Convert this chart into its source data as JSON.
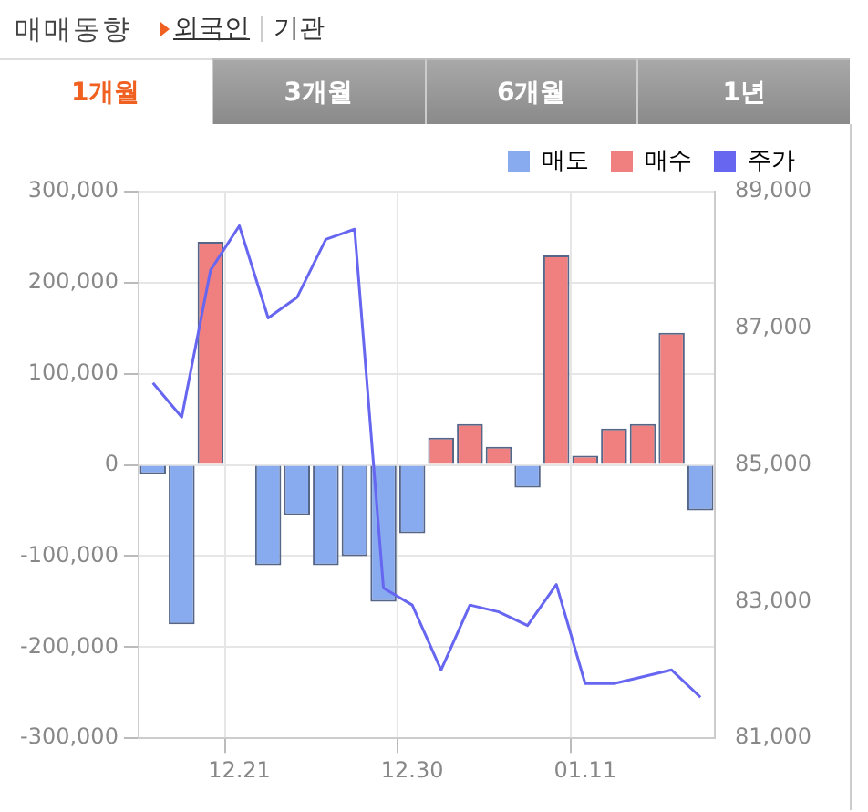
{
  "chart_data": {
    "type": "bar",
    "title": "매매동향",
    "annotations": [
      "외국인",
      "기관",
      "1개월",
      "3개월",
      "6개월",
      "1년"
    ],
    "categories": [
      null,
      null,
      null,
      "12.21",
      null,
      null,
      null,
      null,
      null,
      "12.30",
      null,
      null,
      null,
      null,
      null,
      "01.11",
      null,
      null,
      null,
      null
    ],
    "series": [
      {
        "name": "매도",
        "color": "#88aaee",
        "values": [
          -10000,
          -175000,
          0,
          0,
          -110000,
          -55000,
          -110000,
          -100000,
          -150000,
          -75000,
          0,
          0,
          0,
          -25000,
          0,
          0,
          0,
          0,
          0,
          -50000
        ]
      },
      {
        "name": "매수",
        "color": "#f08080",
        "values": [
          0,
          0,
          245000,
          0,
          0,
          0,
          0,
          0,
          0,
          0,
          30000,
          45000,
          20000,
          0,
          230000,
          10000,
          40000,
          45000,
          145000,
          0
        ]
      },
      {
        "name": "주가",
        "type": "line",
        "axis": "y2",
        "color": "#6666f0",
        "values": [
          86200,
          85700,
          87850,
          88500,
          87150,
          87450,
          88300,
          88450,
          83200,
          82950,
          82000,
          82950,
          82850,
          82650,
          83250,
          81800,
          81800,
          81900,
          82000,
          81600
        ]
      }
    ],
    "stacked": true,
    "ylim": [
      -300000,
      300000
    ],
    "yticks": [
      {
        "value": -300000,
        "label": "-300,000"
      },
      {
        "value": -200000,
        "label": "-200,000"
      },
      {
        "value": -100000,
        "label": "-100,000"
      },
      0,
      {
        "value": 100000,
        "label": "100,000"
      },
      {
        "value": 200000,
        "label": "200,000"
      },
      {
        "value": 300000,
        "label": "300,000"
      }
    ],
    "y2lim": [
      81000,
      89000
    ],
    "y2ticks": [
      {
        "value": 81000,
        "label": "81,000"
      },
      {
        "value": 83000,
        "label": "83,000"
      },
      {
        "value": 85000,
        "label": "85,000"
      },
      {
        "value": 87000,
        "label": "87,000"
      },
      {
        "value": 89000,
        "label": "89,000"
      }
    ],
    "grid": true,
    "legend": "top right",
    "marker": "none",
    "line_style": "solid"
  }
}
